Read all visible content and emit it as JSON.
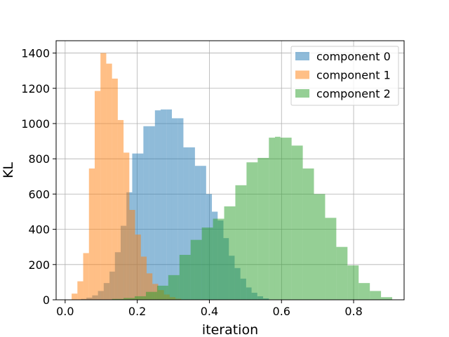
{
  "chart_data": {
    "type": "bar",
    "title": "",
    "xlabel": "iteration",
    "ylabel": "KL",
    "xlim": [
      -0.025,
      0.94
    ],
    "ylim": [
      0,
      1470
    ],
    "xticks": [
      0.0,
      0.2,
      0.4,
      0.6,
      0.8
    ],
    "xtick_labels": [
      "0.0",
      "0.2",
      "0.4",
      "0.6",
      "0.8"
    ],
    "yticks": [
      0,
      200,
      400,
      600,
      800,
      1000,
      1200,
      1400
    ],
    "ytick_labels": [
      "0",
      "200",
      "400",
      "600",
      "800",
      "1000",
      "1200",
      "1400"
    ],
    "grid": true,
    "legend_position": "upper right",
    "series": [
      {
        "name": "component 0",
        "color": "#1f77b4",
        "opacity": 0.5,
        "bins": [
          [
            0.028,
            0.044,
            2
          ],
          [
            0.044,
            0.059,
            5
          ],
          [
            0.059,
            0.075,
            12
          ],
          [
            0.075,
            0.091,
            25
          ],
          [
            0.091,
            0.107,
            50
          ],
          [
            0.107,
            0.123,
            95
          ],
          [
            0.123,
            0.138,
            160
          ],
          [
            0.138,
            0.154,
            270
          ],
          [
            0.154,
            0.17,
            420
          ],
          [
            0.17,
            0.186,
            610
          ],
          [
            0.186,
            0.202,
            830
          ],
          [
            0.202,
            0.217,
            830
          ],
          [
            0.217,
            0.233,
            985
          ],
          [
            0.233,
            0.249,
            985
          ],
          [
            0.249,
            0.265,
            1075
          ],
          [
            0.265,
            0.281,
            1080
          ],
          [
            0.281,
            0.296,
            1080
          ],
          [
            0.296,
            0.312,
            1030
          ],
          [
            0.312,
            0.328,
            1030
          ],
          [
            0.328,
            0.344,
            865
          ],
          [
            0.344,
            0.36,
            865
          ],
          [
            0.36,
            0.375,
            760
          ],
          [
            0.375,
            0.391,
            760
          ],
          [
            0.391,
            0.407,
            600
          ],
          [
            0.407,
            0.423,
            500
          ],
          [
            0.423,
            0.439,
            450
          ],
          [
            0.439,
            0.454,
            350
          ],
          [
            0.454,
            0.47,
            250
          ],
          [
            0.47,
            0.486,
            180
          ],
          [
            0.486,
            0.502,
            120
          ],
          [
            0.502,
            0.517,
            70
          ],
          [
            0.517,
            0.533,
            40
          ],
          [
            0.533,
            0.549,
            20
          ],
          [
            0.549,
            0.565,
            8
          ]
        ]
      },
      {
        "name": "component 1",
        "color": "#ff7f0e",
        "opacity": 0.5,
        "bins": [
          [
            0.018,
            0.034,
            35
          ],
          [
            0.034,
            0.05,
            105
          ],
          [
            0.05,
            0.066,
            265
          ],
          [
            0.066,
            0.082,
            745
          ],
          [
            0.082,
            0.098,
            1185
          ],
          [
            0.098,
            0.114,
            1400
          ],
          [
            0.114,
            0.13,
            1340
          ],
          [
            0.13,
            0.146,
            1255
          ],
          [
            0.146,
            0.162,
            1020
          ],
          [
            0.162,
            0.178,
            835
          ],
          [
            0.178,
            0.194,
            510
          ],
          [
            0.194,
            0.21,
            370
          ],
          [
            0.21,
            0.226,
            245
          ],
          [
            0.226,
            0.242,
            150
          ],
          [
            0.242,
            0.258,
            90
          ],
          [
            0.258,
            0.274,
            55
          ],
          [
            0.274,
            0.29,
            30
          ],
          [
            0.29,
            0.306,
            15
          ],
          [
            0.306,
            0.322,
            6
          ]
        ]
      },
      {
        "name": "component 2",
        "color": "#2ca02c",
        "opacity": 0.5,
        "bins": [
          [
            0.13,
            0.162,
            5
          ],
          [
            0.162,
            0.193,
            10
          ],
          [
            0.193,
            0.224,
            20
          ],
          [
            0.224,
            0.255,
            45
          ],
          [
            0.255,
            0.286,
            80
          ],
          [
            0.286,
            0.317,
            140
          ],
          [
            0.317,
            0.348,
            255
          ],
          [
            0.348,
            0.379,
            340
          ],
          [
            0.379,
            0.41,
            410
          ],
          [
            0.41,
            0.441,
            460
          ],
          [
            0.441,
            0.472,
            530
          ],
          [
            0.472,
            0.503,
            650
          ],
          [
            0.503,
            0.534,
            780
          ],
          [
            0.534,
            0.565,
            805
          ],
          [
            0.565,
            0.582,
            920
          ],
          [
            0.582,
            0.597,
            925
          ],
          [
            0.597,
            0.628,
            920
          ],
          [
            0.628,
            0.659,
            875
          ],
          [
            0.659,
            0.69,
            745
          ],
          [
            0.69,
            0.721,
            600
          ],
          [
            0.721,
            0.752,
            465
          ],
          [
            0.752,
            0.783,
            300
          ],
          [
            0.783,
            0.814,
            195
          ],
          [
            0.814,
            0.845,
            95
          ],
          [
            0.845,
            0.876,
            50
          ],
          [
            0.876,
            0.907,
            15
          ]
        ]
      }
    ]
  }
}
